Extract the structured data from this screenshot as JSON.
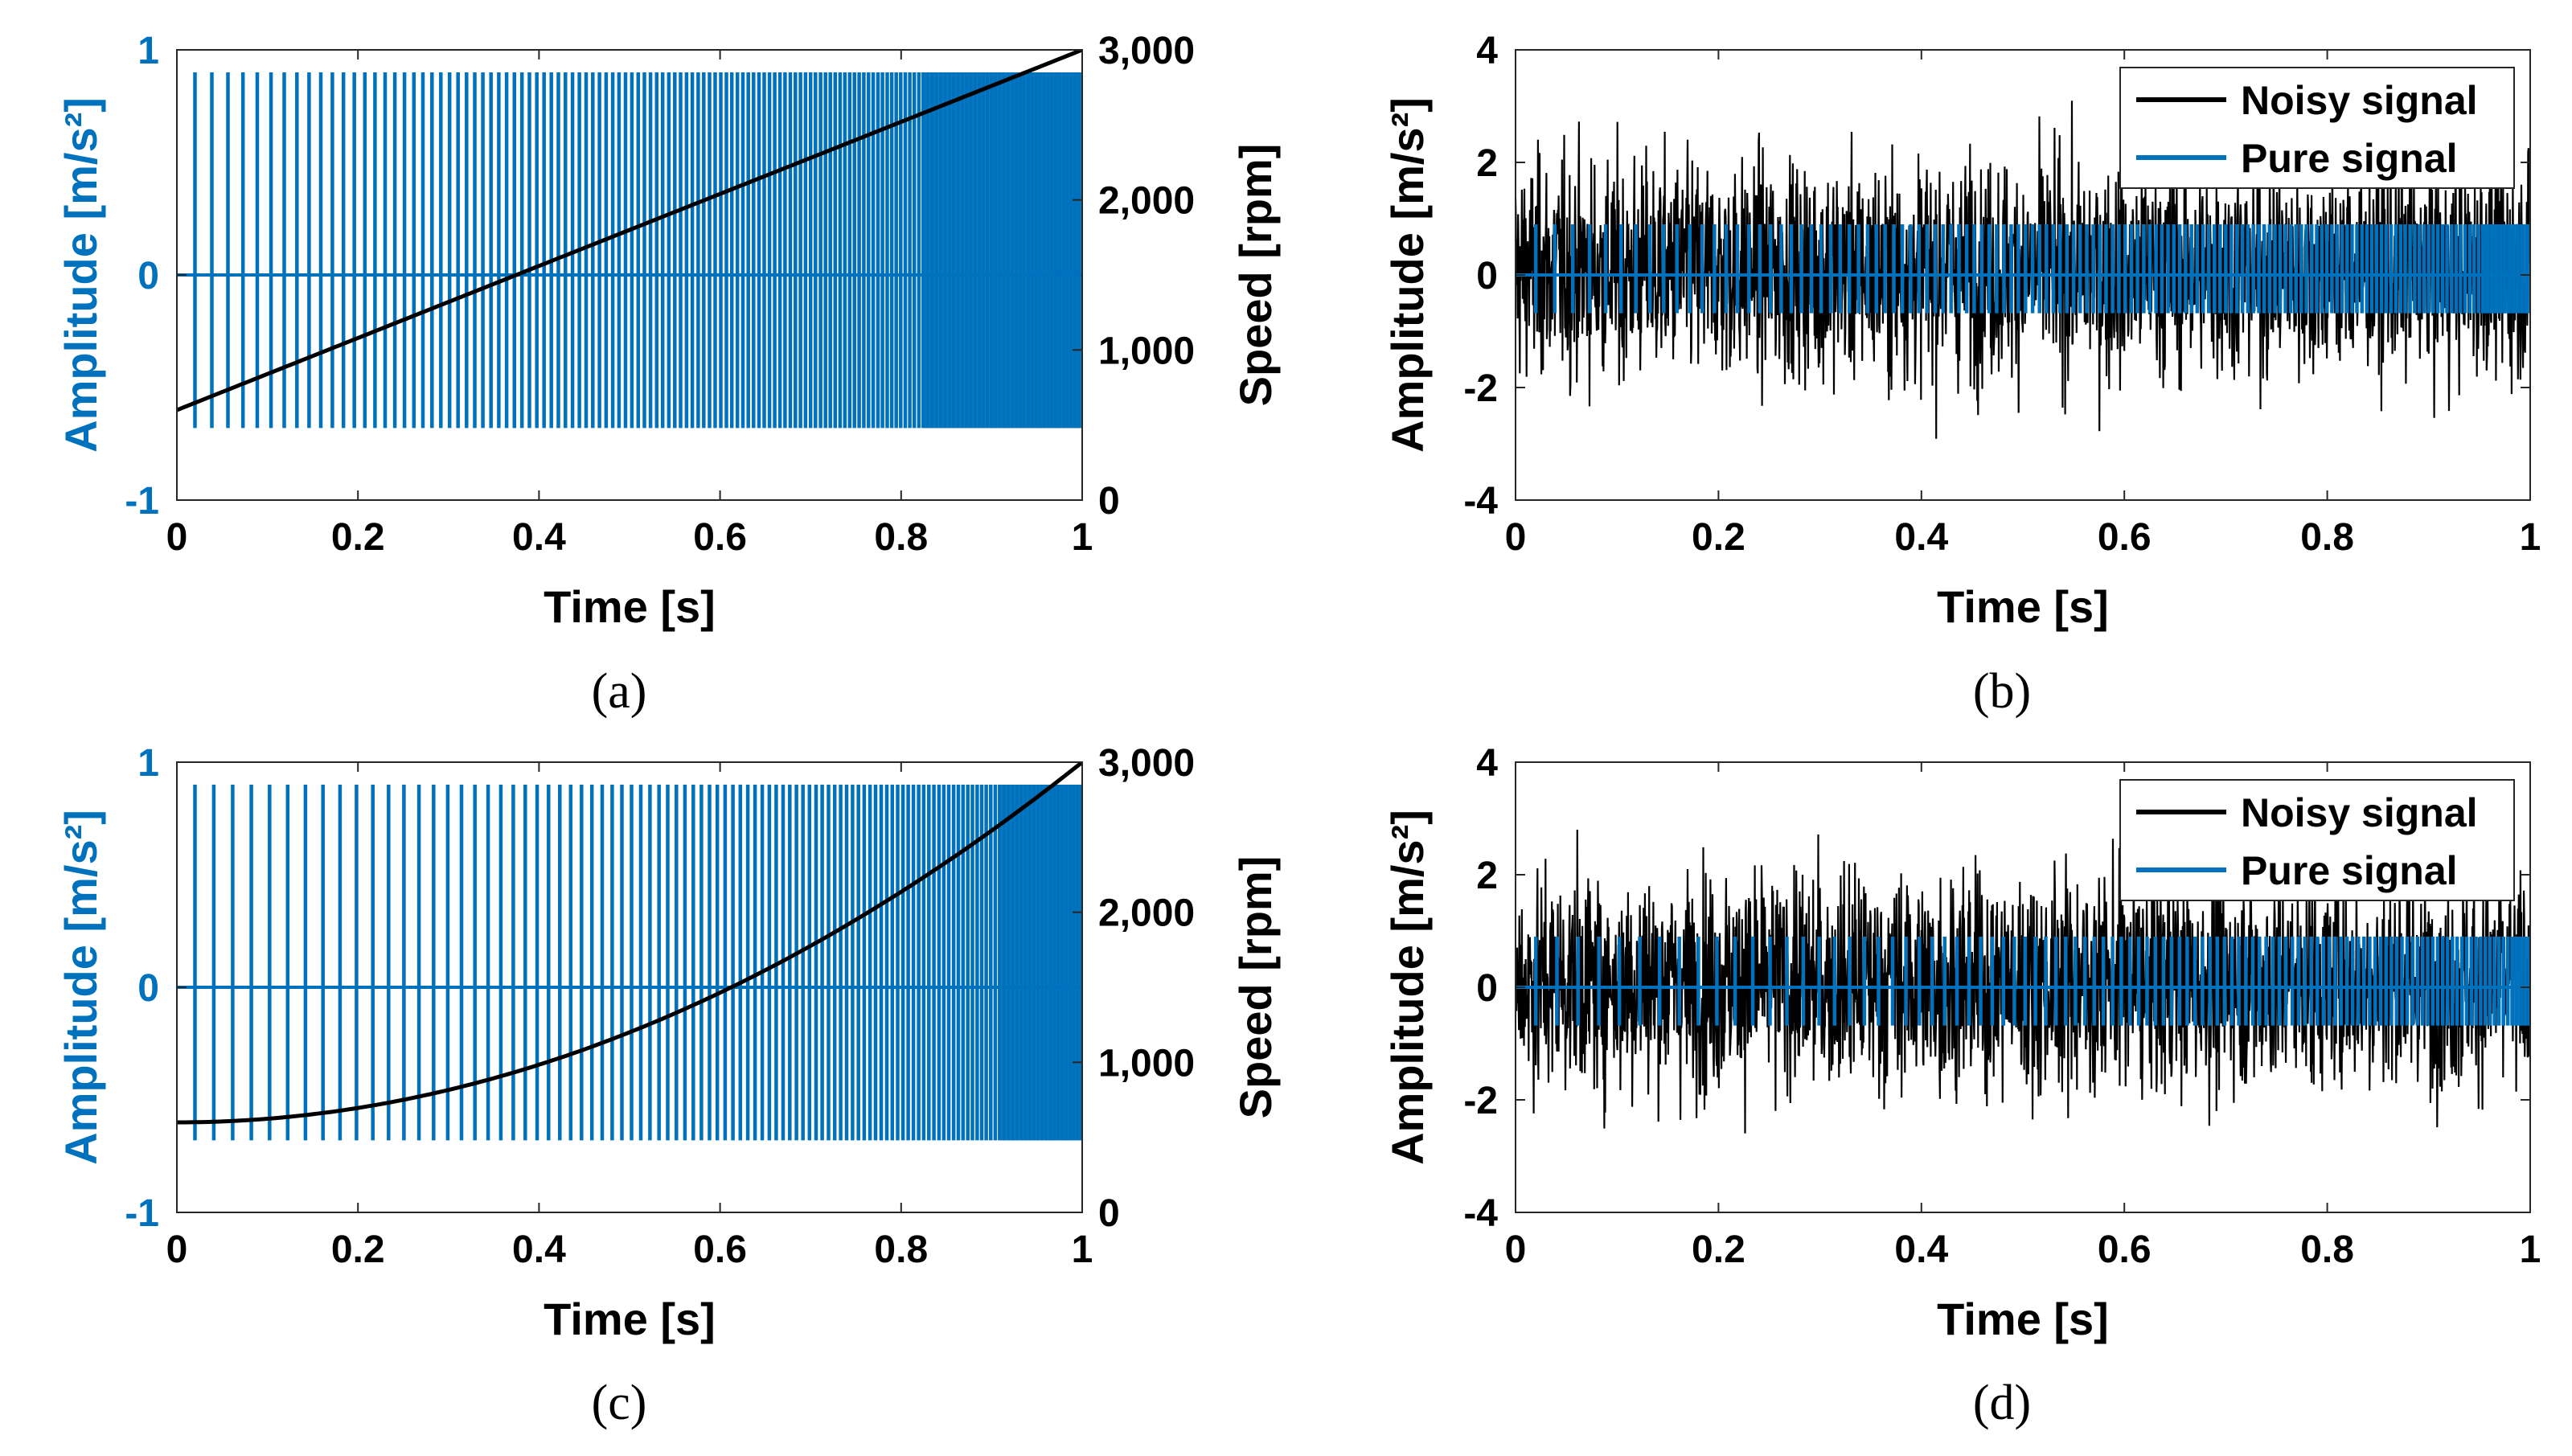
{
  "chart_data": [
    {
      "panel": "a",
      "type": "line",
      "caption": "(a)",
      "xlabel": "Time [s]",
      "ylabel": "Amplitude [m/s²]",
      "ylabel_right": "Speed [rpm]",
      "xlim": [
        0,
        1
      ],
      "ylim": [
        -1,
        1
      ],
      "ylim_right": [
        0,
        3000
      ],
      "xticks": [
        "0",
        "0.2",
        "0.4",
        "0.6",
        "0.8",
        "1"
      ],
      "yticks": [
        "-1",
        "0",
        "1"
      ],
      "yticks_right": [
        "0",
        "1,000",
        "2,000",
        "3,000"
      ],
      "grid": false,
      "colors": {
        "signal": "#0072BD",
        "speed": "#000000"
      },
      "series": [
        {
          "signal": "impulse_train",
          "axis": "left",
          "max": 0.9,
          "min": -0.68,
          "baseline": 0
        },
        {
          "signal": "speed",
          "axis": "right",
          "profile": "linear",
          "x": [
            0,
            1
          ],
          "y": [
            600,
            3000
          ]
        }
      ]
    },
    {
      "panel": "b",
      "type": "line",
      "caption": "(b)",
      "xlabel": "Time [s]",
      "ylabel": "Amplitude [m/s²]",
      "xlim": [
        0,
        1
      ],
      "ylim": [
        -4,
        4
      ],
      "xticks": [
        "0",
        "0.2",
        "0.4",
        "0.6",
        "0.8",
        "1"
      ],
      "yticks": [
        "-4",
        "-2",
        "0",
        "2",
        "4"
      ],
      "grid": false,
      "legend_position": "top-right",
      "series": [
        {
          "name": "Noisy signal",
          "color": "#000000",
          "signal": "noise",
          "typical_range": [
            -2,
            2.6
          ],
          "peak_range": [
            -3.5,
            3.5
          ]
        },
        {
          "name": "Pure signal",
          "color": "#0072BD",
          "signal": "impulse_train",
          "max": 0.9,
          "min": -0.68,
          "baseline": 0
        }
      ]
    },
    {
      "panel": "c",
      "type": "line",
      "caption": "(c)",
      "xlabel": "Time [s]",
      "ylabel": "Amplitude [m/s²]",
      "ylabel_right": "Speed [rpm]",
      "xlim": [
        0,
        1
      ],
      "ylim": [
        -1,
        1
      ],
      "ylim_right": [
        0,
        3000
      ],
      "xticks": [
        "0",
        "0.2",
        "0.4",
        "0.6",
        "0.8",
        "1"
      ],
      "yticks": [
        "-1",
        "0",
        "1"
      ],
      "yticks_right": [
        "0",
        "1,000",
        "2,000",
        "3,000"
      ],
      "grid": false,
      "colors": {
        "signal": "#0072BD",
        "speed": "#000000"
      },
      "series": [
        {
          "signal": "impulse_train",
          "axis": "left",
          "max": 0.9,
          "min": -0.68,
          "baseline": 0
        },
        {
          "signal": "speed",
          "axis": "right",
          "profile": "quadratic",
          "x": [
            0,
            0.2,
            0.4,
            0.6,
            0.8,
            1.0
          ],
          "y": [
            600,
            700,
            1000,
            1450,
            2100,
            3000
          ]
        }
      ]
    },
    {
      "panel": "d",
      "type": "line",
      "caption": "(d)",
      "xlabel": "Time [s]",
      "ylabel": "Amplitude [m/s²]",
      "xlim": [
        0,
        1
      ],
      "ylim": [
        -4,
        4
      ],
      "xticks": [
        "0",
        "0.2",
        "0.4",
        "0.6",
        "0.8",
        "1"
      ],
      "yticks": [
        "-4",
        "-2",
        "0",
        "2",
        "4"
      ],
      "grid": false,
      "legend_position": "top-right",
      "series": [
        {
          "name": "Noisy signal",
          "color": "#000000",
          "signal": "noise",
          "typical_range": [
            -2,
            2.2
          ],
          "peak_range": [
            -3.4,
            3.1
          ]
        },
        {
          "name": "Pure signal",
          "color": "#0072BD",
          "signal": "impulse_train",
          "max": 0.9,
          "min": -0.68,
          "baseline": 0
        }
      ]
    }
  ]
}
